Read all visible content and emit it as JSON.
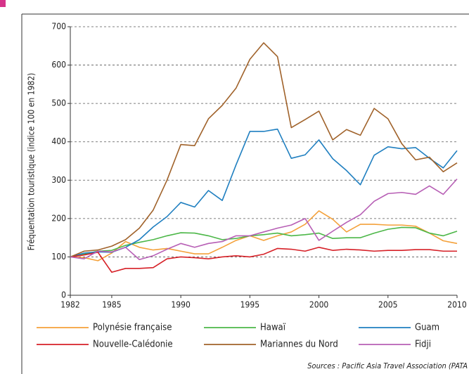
{
  "chart_data": {
    "type": "line",
    "ylabel": "Fréquentation touristique (indice 100 en 1982)",
    "source": "Sources : Pacific Asia Travel Association (PATA",
    "x": [
      1982,
      1983,
      1984,
      1985,
      1986,
      1987,
      1988,
      1989,
      1990,
      1991,
      1992,
      1993,
      1994,
      1995,
      1996,
      1997,
      1998,
      1999,
      2000,
      2001,
      2002,
      2003,
      2004,
      2005,
      2006,
      2007,
      2008,
      2009,
      2010
    ],
    "xlim": [
      1982,
      2010
    ],
    "xticks": [
      1982,
      1985,
      1990,
      1995,
      2000,
      2005,
      2010
    ],
    "ylim": [
      0,
      700
    ],
    "yticks": [
      0,
      100,
      200,
      300,
      400,
      500,
      600,
      700
    ],
    "grid": true,
    "legend": "bottom",
    "series": [
      {
        "name": "Polynésie française",
        "color": "#f4a13a",
        "values": [
          100,
          98,
          90,
          110,
          140,
          125,
          118,
          122,
          115,
          108,
          108,
          125,
          143,
          155,
          143,
          155,
          165,
          185,
          220,
          198,
          165,
          185,
          185,
          183,
          183,
          180,
          162,
          142,
          135
        ]
      },
      {
        "name": "Hawaï",
        "color": "#4cb748",
        "values": [
          100,
          107,
          115,
          117,
          130,
          138,
          145,
          155,
          163,
          162,
          155,
          145,
          148,
          155,
          158,
          162,
          155,
          158,
          162,
          148,
          150,
          150,
          162,
          172,
          177,
          176,
          162,
          155,
          167
        ]
      },
      {
        "name": "Guam",
        "color": "#1f7fc0",
        "values": [
          100,
          110,
          113,
          112,
          125,
          145,
          178,
          205,
          242,
          230,
          273,
          247,
          340,
          427,
          427,
          433,
          357,
          366,
          405,
          356,
          325,
          288,
          365,
          387,
          382,
          385,
          357,
          332,
          377
        ]
      },
      {
        "name": "Nouvelle-Calédonie",
        "color": "#d62027",
        "values": [
          100,
          105,
          112,
          60,
          70,
          70,
          72,
          95,
          100,
          98,
          95,
          100,
          103,
          100,
          107,
          122,
          120,
          115,
          125,
          117,
          120,
          118,
          115,
          117,
          117,
          119,
          119,
          115,
          115
        ]
      },
      {
        "name": "Mariannes du Nord",
        "color": "#a0622a",
        "values": [
          100,
          115,
          118,
          128,
          145,
          175,
          222,
          300,
          393,
          390,
          460,
          495,
          540,
          615,
          658,
          622,
          437,
          458,
          480,
          405,
          432,
          417,
          487,
          460,
          395,
          353,
          360,
          322,
          345
        ]
      },
      {
        "name": "Fidji",
        "color": "#b75fb5",
        "values": [
          100,
          95,
          115,
          113,
          125,
          93,
          103,
          120,
          135,
          125,
          135,
          140,
          155,
          155,
          165,
          175,
          183,
          200,
          143,
          167,
          190,
          210,
          245,
          265,
          268,
          263,
          285,
          263,
          303
        ]
      }
    ]
  }
}
